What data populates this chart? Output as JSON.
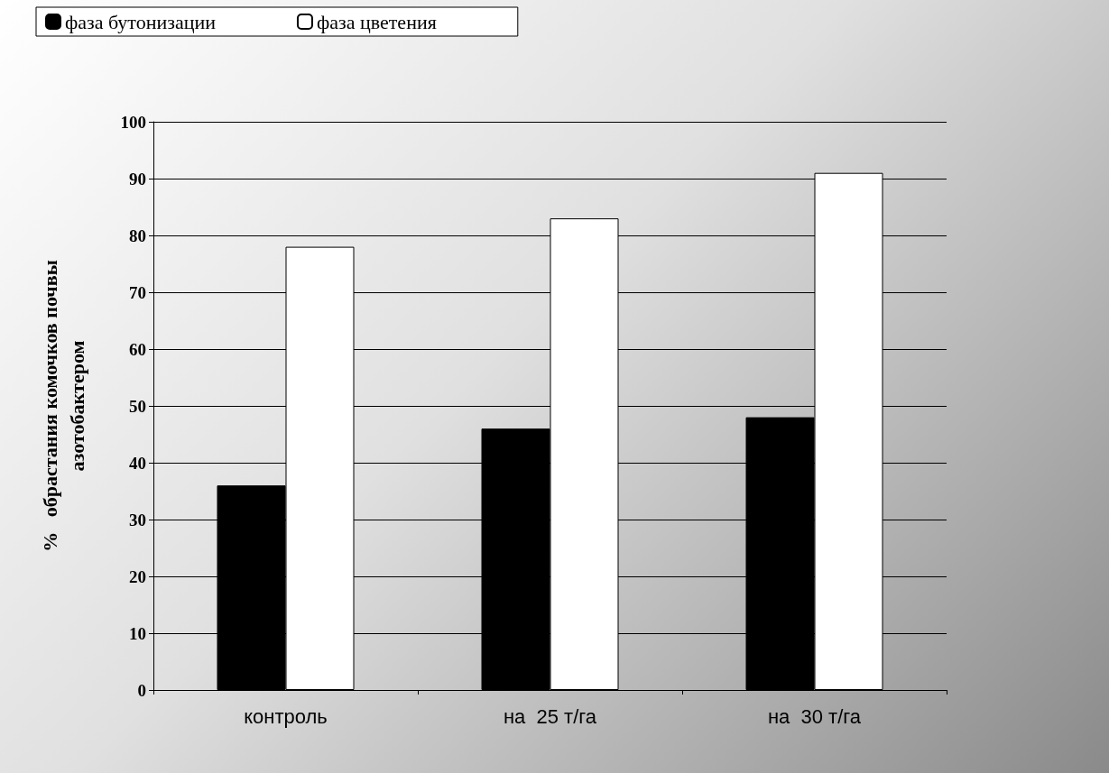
{
  "chart_data": {
    "type": "bar",
    "categories": [
      "контроль",
      "на  25 т/га",
      "на  30 т/га"
    ],
    "series": [
      {
        "name": "фаза бутонизации",
        "color": "#000000",
        "values": [
          36,
          46,
          48
        ]
      },
      {
        "name": "фаза цветения",
        "color": "#ffffff",
        "values": [
          78,
          83,
          91
        ]
      }
    ],
    "ylabel": "%   обрастания комочков почвы\nазотобактером",
    "ylim": [
      0,
      100
    ],
    "yticks": [
      0,
      10,
      20,
      30,
      40,
      50,
      60,
      70,
      80,
      90,
      100
    ],
    "grid": "y",
    "legend": "top left"
  }
}
